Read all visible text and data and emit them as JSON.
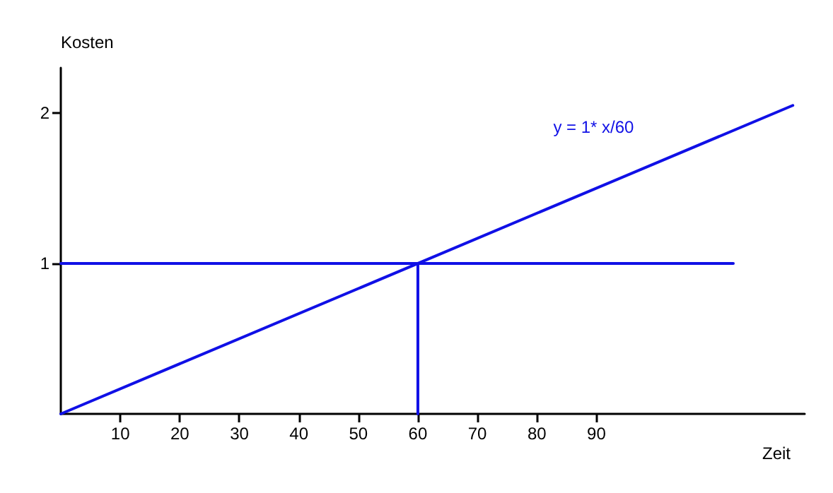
{
  "chart_data": {
    "type": "line",
    "xlabel": "Zeit",
    "ylabel": "Kosten",
    "xlim": [
      0,
      125
    ],
    "ylim": [
      0,
      2.3
    ],
    "xticks": [
      10,
      20,
      30,
      40,
      50,
      60,
      70,
      80,
      90
    ],
    "yticks": [
      1,
      2
    ],
    "grid": false,
    "marker": "none",
    "line_style": "solid",
    "series": [
      {
        "name": "y = 1* x/60",
        "color": "#1010e6",
        "x": [
          0,
          123
        ],
        "values": [
          0,
          2.05
        ]
      },
      {
        "color": "#1010e6",
        "x": [
          0,
          113
        ],
        "values": [
          1,
          1
        ]
      },
      {
        "color": "#1010e6",
        "x": [
          60,
          60
        ],
        "values": [
          0,
          1
        ]
      }
    ]
  }
}
